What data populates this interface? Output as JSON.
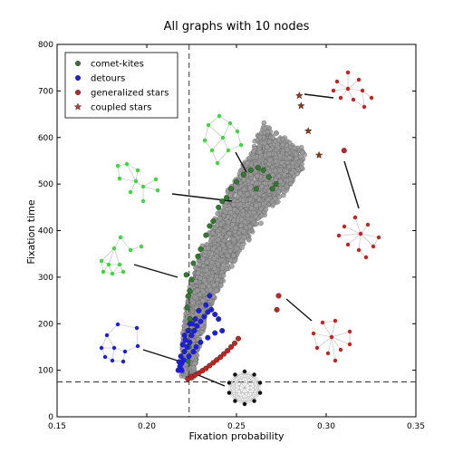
{
  "chart_data": {
    "type": "scatter",
    "title": "All graphs with 10 nodes",
    "xlabel": "Fixation probability",
    "ylabel": "Fixation time",
    "xlim": [
      0.15,
      0.35
    ],
    "ylim": [
      0,
      800
    ],
    "xticks": [
      0.15,
      0.2,
      0.25,
      0.3,
      0.35
    ],
    "xtick_labels": [
      "0.15",
      "0.20",
      "0.25",
      "0.30",
      "0.35"
    ],
    "yticks": [
      0,
      100,
      200,
      300,
      400,
      500,
      600,
      700,
      800
    ],
    "ytick_labels": [
      "0",
      "100",
      "200",
      "300",
      "400",
      "500",
      "600",
      "700",
      "800"
    ],
    "grid": false,
    "legend_position": "top-left",
    "reference_lines": {
      "vertical_x": 0.2236,
      "horizontal_y": 75
    },
    "series": [
      {
        "name": "comet-kites",
        "marker": "circle",
        "color": "#2e7d2e",
        "points": [
          [
            0.223,
            120
          ],
          [
            0.2235,
            150
          ],
          [
            0.2238,
            185
          ],
          [
            0.224,
            210
          ],
          [
            0.2225,
            235
          ],
          [
            0.2232,
            260
          ],
          [
            0.224,
            270
          ],
          [
            0.222,
            305
          ],
          [
            0.225,
            295
          ],
          [
            0.226,
            330
          ],
          [
            0.2285,
            345
          ],
          [
            0.23,
            360
          ],
          [
            0.233,
            390
          ],
          [
            0.235,
            410
          ],
          [
            0.237,
            420
          ],
          [
            0.24,
            450
          ],
          [
            0.242,
            463
          ],
          [
            0.2445,
            470
          ],
          [
            0.247,
            490
          ],
          [
            0.25,
            505
          ],
          [
            0.254,
            520
          ],
          [
            0.258,
            530
          ],
          [
            0.262,
            535
          ],
          [
            0.265,
            530
          ],
          [
            0.268,
            515
          ],
          [
            0.27,
            490
          ],
          [
            0.272,
            500
          ],
          [
            0.261,
            490
          ]
        ]
      },
      {
        "name": "detours",
        "marker": "circle",
        "color": "#1a1aff",
        "points": [
          [
            0.2175,
            100
          ],
          [
            0.2185,
            108
          ],
          [
            0.2195,
            115
          ],
          [
            0.2205,
            122
          ],
          [
            0.219,
            130
          ],
          [
            0.221,
            140
          ],
          [
            0.2225,
            150
          ],
          [
            0.224,
            160
          ],
          [
            0.2215,
            165
          ],
          [
            0.225,
            175
          ],
          [
            0.2265,
            185
          ],
          [
            0.228,
            195
          ],
          [
            0.23,
            205
          ],
          [
            0.224,
            200
          ],
          [
            0.232,
            215
          ],
          [
            0.234,
            225
          ],
          [
            0.236,
            230
          ],
          [
            0.238,
            220
          ],
          [
            0.24,
            210
          ],
          [
            0.227,
            210
          ],
          [
            0.229,
            228
          ],
          [
            0.221,
            175
          ],
          [
            0.223,
            185
          ],
          [
            0.22,
            155
          ],
          [
            0.218,
            118
          ],
          [
            0.226,
            140
          ],
          [
            0.23,
            160
          ],
          [
            0.234,
            170
          ],
          [
            0.238,
            180
          ],
          [
            0.242,
            185
          ],
          [
            0.2195,
            100
          ],
          [
            0.2235,
            130
          ],
          [
            0.2275,
            150
          ],
          [
            0.2255,
            200
          ],
          [
            0.233,
            240
          ],
          [
            0.235,
            260
          ]
        ]
      },
      {
        "name": "generalized stars",
        "marker": "circle",
        "color": "#cc1f1f",
        "points": [
          [
            0.223,
            82
          ],
          [
            0.225,
            86
          ],
          [
            0.227,
            90
          ],
          [
            0.229,
            94
          ],
          [
            0.231,
            99
          ],
          [
            0.233,
            104
          ],
          [
            0.235,
            110
          ],
          [
            0.237,
            116
          ],
          [
            0.239,
            122
          ],
          [
            0.241,
            128
          ],
          [
            0.243,
            135
          ],
          [
            0.245,
            142
          ],
          [
            0.247,
            150
          ],
          [
            0.249,
            158
          ],
          [
            0.251,
            168
          ],
          [
            0.2725,
            230
          ],
          [
            0.2735,
            260
          ],
          [
            0.31,
            572
          ]
        ]
      },
      {
        "name": "coupled stars",
        "marker": "star",
        "color": "#8b3a1a",
        "points": [
          [
            0.285,
            690
          ],
          [
            0.286,
            668
          ],
          [
            0.29,
            614
          ],
          [
            0.296,
            562
          ]
        ]
      }
    ]
  },
  "legend": {
    "items": [
      {
        "label": "comet-kites",
        "color": "#2e7d2e",
        "marker": "circle"
      },
      {
        "label": "detours",
        "color": "#1a1aff",
        "marker": "circle"
      },
      {
        "label": "generalized stars",
        "color": "#cc1f1f",
        "marker": "circle"
      },
      {
        "label": "coupled stars",
        "color": "#b04040",
        "marker": "star"
      }
    ]
  },
  "cloud_color": "#9a9a9a",
  "insets": [
    {
      "name": "comet-kite-inset-top",
      "color": "#33dd33"
    },
    {
      "name": "comet-kite-inset-middle",
      "color": "#33dd33"
    },
    {
      "name": "comet-kite-inset-lower",
      "color": "#33dd33"
    },
    {
      "name": "detour-inset",
      "color": "#1a1aff"
    },
    {
      "name": "ring-inset",
      "color": "#111111"
    },
    {
      "name": "generalized-star-inset-top",
      "color": "#cc1f1f"
    },
    {
      "name": "generalized-star-inset-middle",
      "color": "#cc1f1f"
    },
    {
      "name": "generalized-star-inset-bottom",
      "color": "#cc1f1f"
    }
  ]
}
